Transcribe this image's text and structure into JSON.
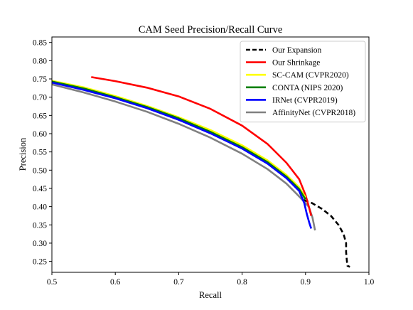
{
  "chart_data": {
    "type": "line",
    "title": "CAM Seed Precision/Recall Curve",
    "xlabel": "Recall",
    "ylabel": "Precision",
    "xlim": [
      0.5,
      1.0
    ],
    "ylim": [
      0.22,
      0.865
    ],
    "xticks": [
      "0.5",
      "0.6",
      "0.7",
      "0.8",
      "0.9",
      "1.0"
    ],
    "yticks": [
      "0.25",
      "0.30",
      "0.35",
      "0.40",
      "0.45",
      "0.50",
      "0.55",
      "0.60",
      "0.65",
      "0.70",
      "0.75",
      "0.80",
      "0.85"
    ],
    "grid": false,
    "legend_position": "top-right",
    "series": [
      {
        "name": "Our Expansion",
        "color": "#000000",
        "dash": true,
        "points": [
          [
            0.897,
            0.418
          ],
          [
            0.91,
            0.41
          ],
          [
            0.925,
            0.395
          ],
          [
            0.94,
            0.375
          ],
          [
            0.952,
            0.35
          ],
          [
            0.96,
            0.325
          ],
          [
            0.964,
            0.3
          ],
          [
            0.964,
            0.275
          ],
          [
            0.965,
            0.255
          ],
          [
            0.966,
            0.238
          ],
          [
            0.97,
            0.235
          ]
        ]
      },
      {
        "name": "Our Shrinkage",
        "color": "#ff0000",
        "dash": false,
        "points": [
          [
            0.562,
            0.755
          ],
          [
            0.6,
            0.744
          ],
          [
            0.65,
            0.726
          ],
          [
            0.7,
            0.702
          ],
          [
            0.75,
            0.668
          ],
          [
            0.8,
            0.622
          ],
          [
            0.84,
            0.572
          ],
          [
            0.87,
            0.52
          ],
          [
            0.89,
            0.475
          ],
          [
            0.9,
            0.432
          ],
          [
            0.906,
            0.395
          ],
          [
            0.909,
            0.375
          ]
        ]
      },
      {
        "name": "SC-CAM (CVPR2020)",
        "color": "#ffff00",
        "dash": false,
        "points": [
          [
            0.5,
            0.745
          ],
          [
            0.55,
            0.727
          ],
          [
            0.6,
            0.703
          ],
          [
            0.65,
            0.676
          ],
          [
            0.7,
            0.645
          ],
          [
            0.75,
            0.61
          ],
          [
            0.8,
            0.568
          ],
          [
            0.84,
            0.527
          ],
          [
            0.87,
            0.487
          ],
          [
            0.89,
            0.453
          ],
          [
            0.9,
            0.425
          ]
        ]
      },
      {
        "name": "CONTA (NIPS 2020)",
        "color": "#008000",
        "dash": false,
        "points": [
          [
            0.5,
            0.743
          ],
          [
            0.55,
            0.724
          ],
          [
            0.6,
            0.7
          ],
          [
            0.65,
            0.673
          ],
          [
            0.7,
            0.642
          ],
          [
            0.75,
            0.605
          ],
          [
            0.8,
            0.563
          ],
          [
            0.84,
            0.522
          ],
          [
            0.87,
            0.482
          ],
          [
            0.89,
            0.448
          ],
          [
            0.9,
            0.42
          ]
        ]
      },
      {
        "name": "IRNet (CVPR2019)",
        "color": "#0000ff",
        "dash": false,
        "points": [
          [
            0.5,
            0.74
          ],
          [
            0.55,
            0.72
          ],
          [
            0.6,
            0.697
          ],
          [
            0.65,
            0.67
          ],
          [
            0.7,
            0.638
          ],
          [
            0.75,
            0.601
          ],
          [
            0.8,
            0.559
          ],
          [
            0.84,
            0.518
          ],
          [
            0.87,
            0.478
          ],
          [
            0.89,
            0.443
          ],
          [
            0.898,
            0.41
          ],
          [
            0.902,
            0.38
          ],
          [
            0.906,
            0.355
          ],
          [
            0.909,
            0.34
          ]
        ]
      },
      {
        "name": "AffinityNet (CVPR2018)",
        "color": "#808080",
        "dash": false,
        "points": [
          [
            0.5,
            0.735
          ],
          [
            0.55,
            0.713
          ],
          [
            0.6,
            0.688
          ],
          [
            0.65,
            0.66
          ],
          [
            0.7,
            0.627
          ],
          [
            0.75,
            0.589
          ],
          [
            0.8,
            0.545
          ],
          [
            0.84,
            0.503
          ],
          [
            0.87,
            0.463
          ],
          [
            0.89,
            0.428
          ],
          [
            0.905,
            0.4
          ],
          [
            0.911,
            0.37
          ],
          [
            0.915,
            0.335
          ]
        ]
      }
    ]
  }
}
